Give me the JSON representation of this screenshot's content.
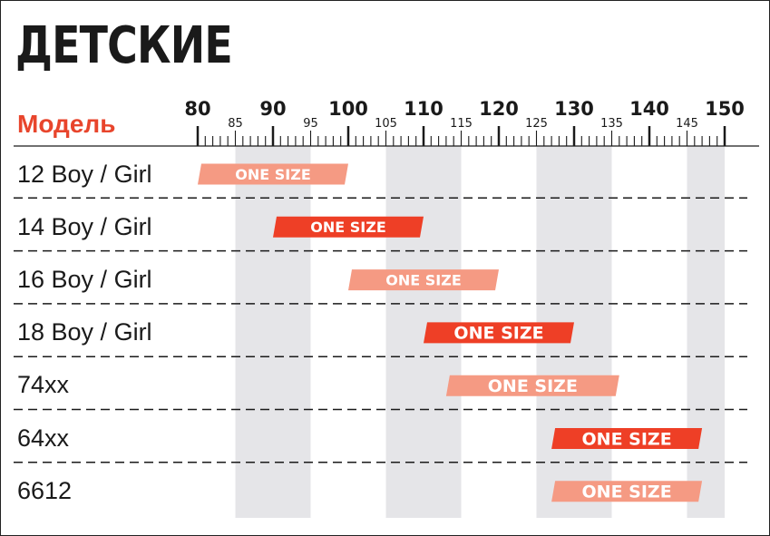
{
  "title": "ДЕТСКИЕ",
  "model_header": "Модель",
  "colors": {
    "accent": "#e8452c",
    "bar_dark": "#ee3f26",
    "bar_light": "#f59a83",
    "stripe": "#e5e5e8",
    "text": "#1a1a1a"
  },
  "chart_data": {
    "type": "bar",
    "orientation": "horizontal-range",
    "title": "ДЕТСКИЕ",
    "ylabel": "Модель",
    "xlim": [
      80,
      150
    ],
    "major_ticks": [
      80,
      90,
      100,
      110,
      120,
      130,
      140,
      150
    ],
    "minor_labeled_ticks": [
      85,
      95,
      105,
      115,
      125,
      135,
      145
    ],
    "grid": "alternating vertical bands",
    "rows": [
      {
        "model": "12 Boy / Girl",
        "start": 80,
        "end": 100,
        "label": "ONE SIZE",
        "style": "light"
      },
      {
        "model": "14 Boy / Girl",
        "start": 90,
        "end": 110,
        "label": "ONE SIZE",
        "style": "dark"
      },
      {
        "model": "16 Boy / Girl",
        "start": 100,
        "end": 120,
        "label": "ONE SIZE",
        "style": "light"
      },
      {
        "model": "18 Boy / Girl",
        "start": 110,
        "end": 130,
        "label": "ONE SIZE",
        "style": "dark"
      },
      {
        "model": "74xx",
        "start": 113,
        "end": 136,
        "label": "ONE SIZE",
        "style": "light"
      },
      {
        "model": "64xx",
        "start": 127,
        "end": 147,
        "label": "ONE SIZE",
        "style": "dark"
      },
      {
        "model": "6612",
        "start": 127,
        "end": 147,
        "label": "ONE SIZE",
        "style": "light"
      }
    ]
  }
}
